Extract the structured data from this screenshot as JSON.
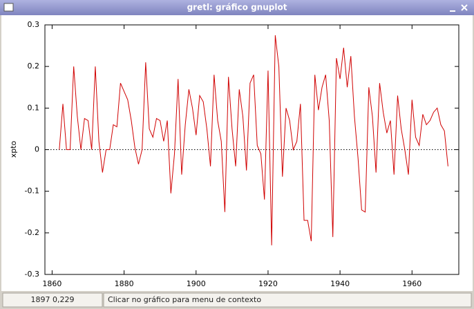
{
  "window": {
    "title": "gretl: gráfico gnuplot"
  },
  "chart_data": {
    "type": "line",
    "ylabel": "xpto",
    "x": [
      1862,
      1863,
      1864,
      1865,
      1866,
      1867,
      1868,
      1869,
      1870,
      1871,
      1872,
      1873,
      1874,
      1875,
      1876,
      1877,
      1878,
      1879,
      1880,
      1881,
      1882,
      1883,
      1884,
      1885,
      1886,
      1887,
      1888,
      1889,
      1890,
      1891,
      1892,
      1893,
      1894,
      1895,
      1896,
      1897,
      1898,
      1899,
      1900,
      1901,
      1902,
      1903,
      1904,
      1905,
      1906,
      1907,
      1908,
      1909,
      1910,
      1911,
      1912,
      1913,
      1914,
      1915,
      1916,
      1917,
      1918,
      1919,
      1920,
      1921,
      1922,
      1923,
      1924,
      1925,
      1926,
      1927,
      1928,
      1929,
      1930,
      1931,
      1932,
      1933,
      1934,
      1935,
      1936,
      1937,
      1938,
      1939,
      1940,
      1941,
      1942,
      1943,
      1944,
      1945,
      1946,
      1947,
      1948,
      1949,
      1950,
      1951,
      1952,
      1953,
      1954,
      1955,
      1956,
      1957,
      1958,
      1959,
      1960,
      1961,
      1962,
      1963,
      1964,
      1965,
      1966,
      1967,
      1968,
      1969,
      1970
    ],
    "series": [
      {
        "name": "xpto",
        "color": "#d00000",
        "values": [
          0,
          0.11,
          0,
          0,
          0.2,
          0.08,
          0,
          0.075,
          0.07,
          0,
          0.2,
          0.02,
          -0.055,
          0,
          0,
          0.06,
          0.055,
          0.16,
          0.14,
          0.12,
          0.07,
          0.005,
          -0.035,
          0,
          0.21,
          0.05,
          0.03,
          0.075,
          0.07,
          0.02,
          0.07,
          -0.105,
          -0.01,
          0.17,
          -0.06,
          0.06,
          0.145,
          0.1,
          0.035,
          0.13,
          0.115,
          0.05,
          -0.04,
          0.18,
          0.07,
          0.02,
          -0.15,
          0.175,
          0.05,
          -0.04,
          0.145,
          0.08,
          -0.05,
          0.16,
          0.18,
          0.01,
          -0.01,
          -0.12,
          0.19,
          -0.23,
          0.275,
          0.2,
          -0.065,
          0.1,
          0.07,
          0,
          0.02,
          0.11,
          -0.17,
          -0.17,
          -0.22,
          0.18,
          0.095,
          0.15,
          0.18,
          0.07,
          -0.21,
          0.22,
          0.17,
          0.245,
          0.15,
          0.225,
          0.08,
          -0.02,
          -0.145,
          -0.15,
          0.15,
          0.08,
          -0.055,
          0.16,
          0.09,
          0.04,
          0.07,
          -0.06,
          0.13,
          0.05,
          0,
          -0.06,
          0.12,
          0.03,
          0.01,
          0.085,
          0.06,
          0.07,
          0.09,
          0.1,
          0.06,
          0.045,
          -0.04
        ]
      }
    ],
    "xlim": [
      1858,
      1973
    ],
    "ylim": [
      -0.3,
      0.3
    ],
    "xticks": [
      1860,
      1880,
      1900,
      1920,
      1940,
      1960
    ],
    "yticks": [
      -0.3,
      -0.2,
      -0.1,
      0,
      0.1,
      0.2,
      0.3
    ],
    "zero_line": true
  },
  "status": {
    "coords": "1897 0,229",
    "hint": "Clicar no gráfico para menu de contexto"
  }
}
